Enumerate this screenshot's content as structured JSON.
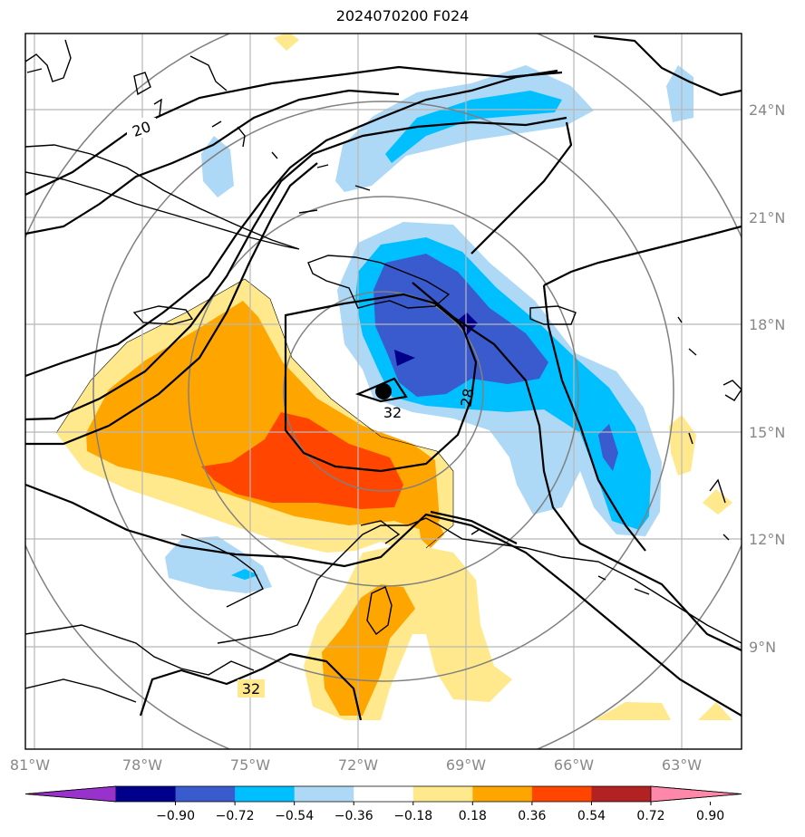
{
  "title": "2024070200 F024",
  "lon_labels": [
    "81°W",
    "78°W",
    "75°W",
    "72°W",
    "69°W",
    "66°W",
    "63°W"
  ],
  "lat_labels": [
    "24°N",
    "21°N",
    "18°N",
    "15°N",
    "12°N",
    "9°N"
  ],
  "contour_labels": [
    "20",
    "32",
    "28",
    "32"
  ],
  "colorbar": {
    "colors": [
      "#9932cc",
      "#00008b",
      "#3a5bcd",
      "#00bfff",
      "#add8f6",
      "#ffffff",
      "#ffe98c",
      "#ffa500",
      "#ff4500",
      "#b22222",
      "#ff88aa"
    ],
    "labels": [
      "−0.90",
      "−0.72",
      "−0.54",
      "−0.36",
      "−0.18",
      "0.18",
      "0.36",
      "0.54",
      "0.72",
      "0.90"
    ]
  },
  "colors": {
    "light_yellow": "#ffe98c",
    "orange": "#ffa500",
    "red_orange": "#ff4500",
    "light_blue": "#add8f6",
    "cyan": "#00bfff",
    "royal_blue": "#3a5bcd",
    "navy": "#00008b"
  },
  "storm_marker": "black-dot"
}
